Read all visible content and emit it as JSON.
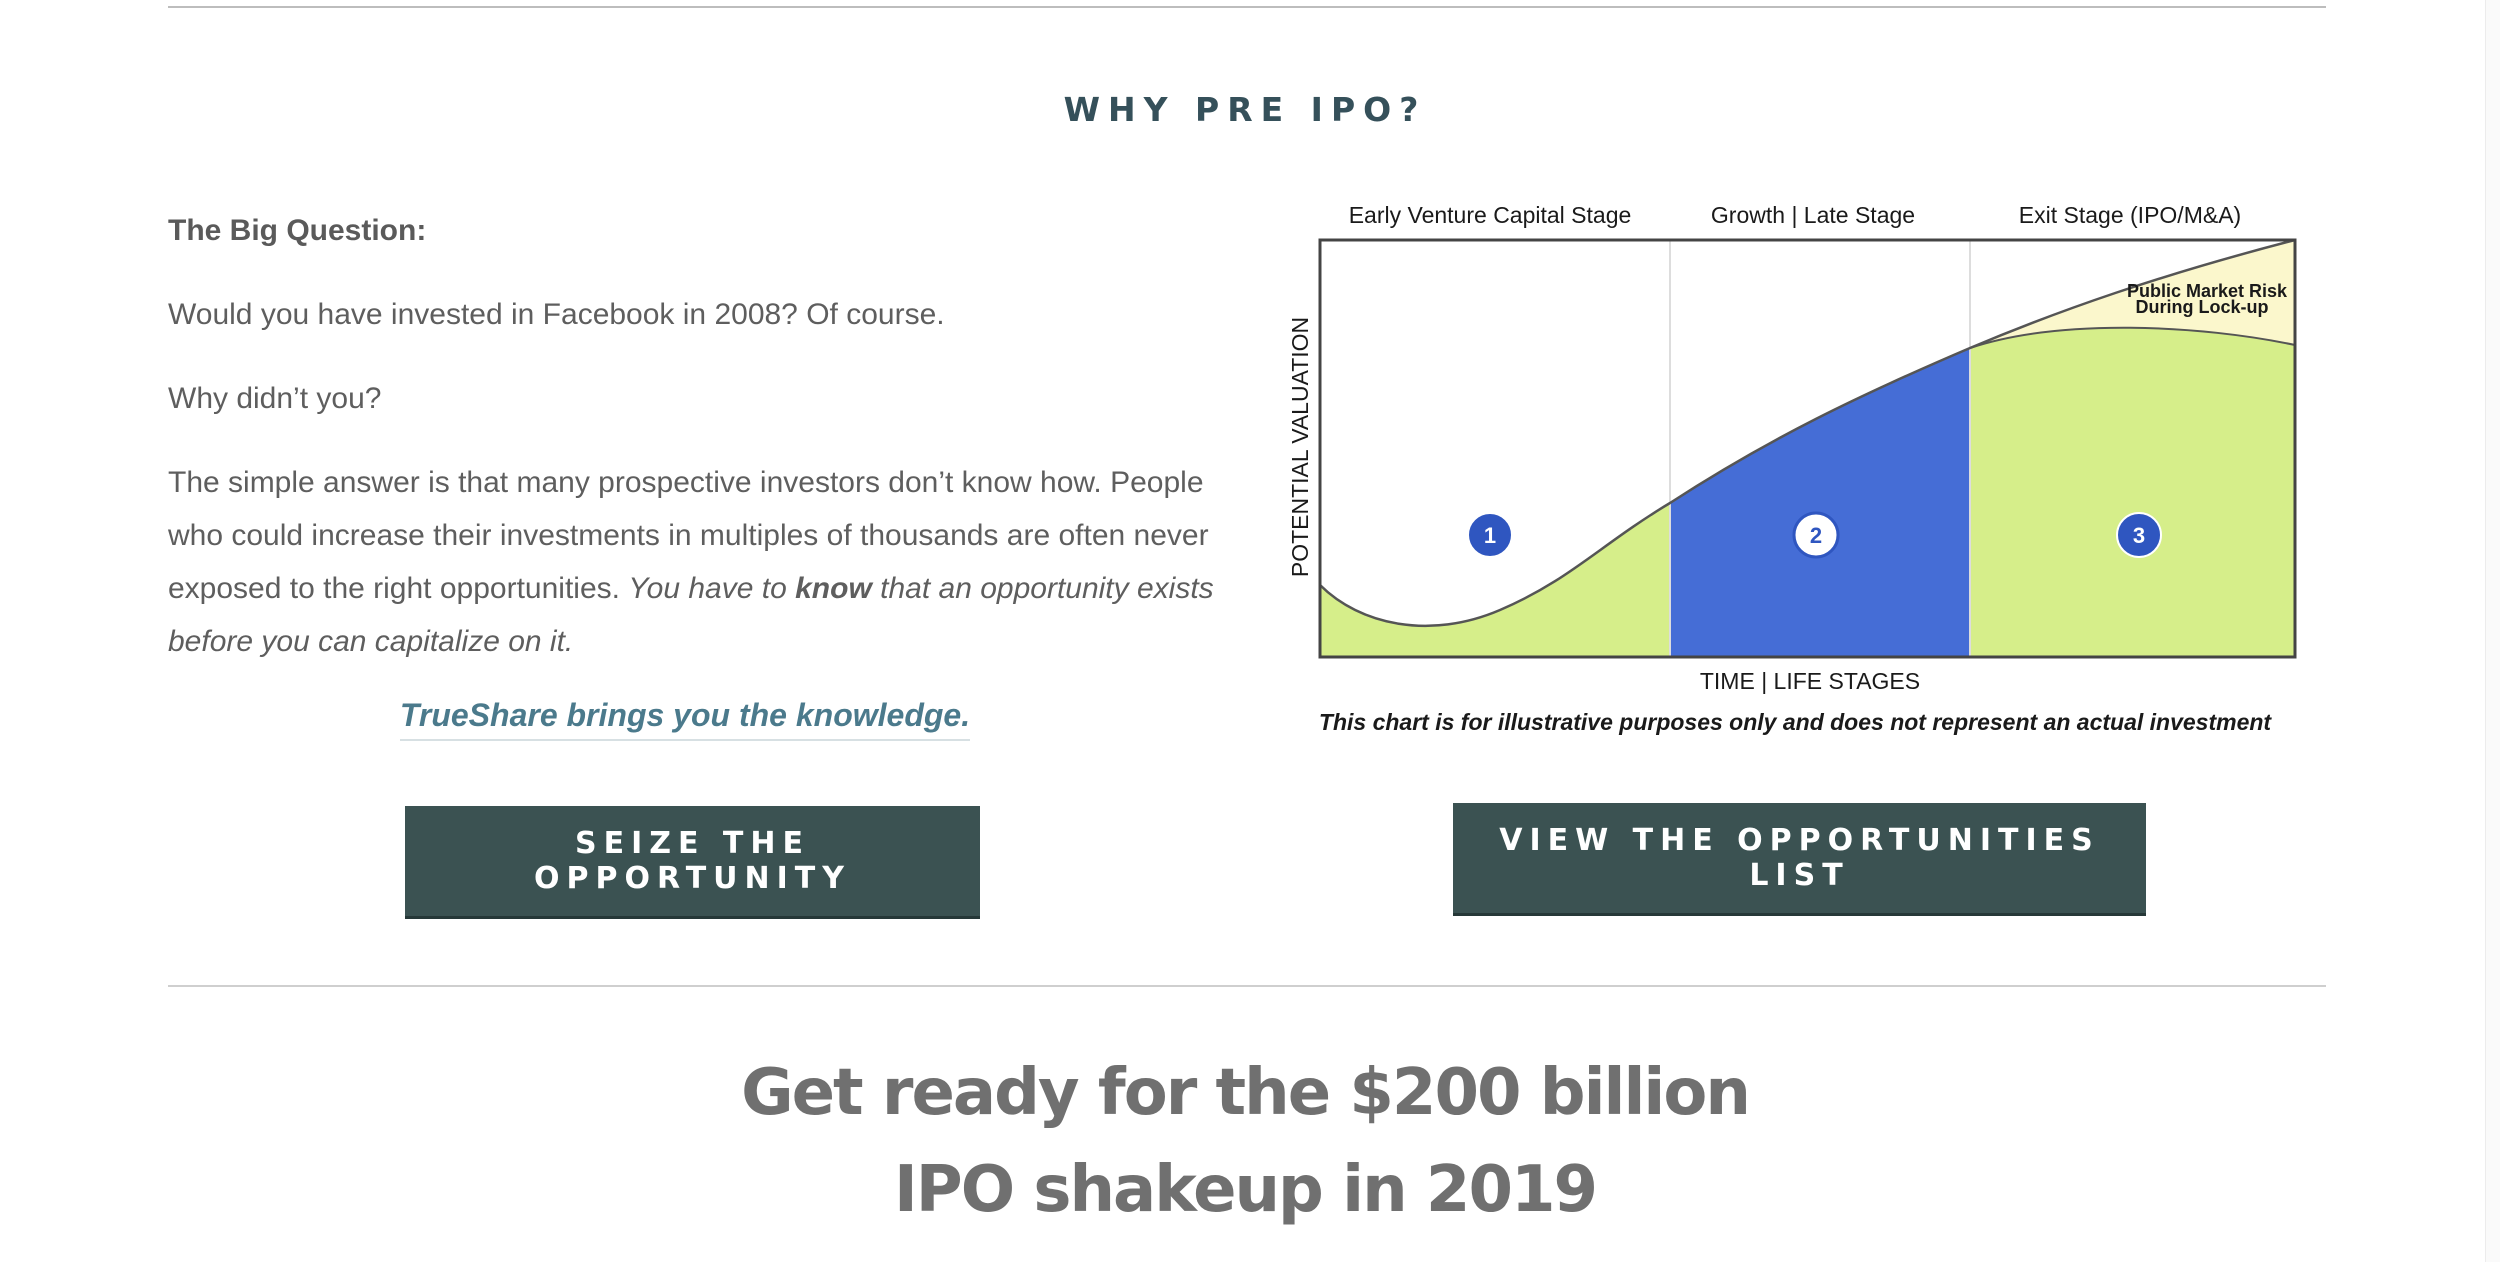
{
  "section": {
    "title": "WHY PRE IPO?"
  },
  "intro": {
    "heading": "The Big Question:",
    "line1": "Would you have invested in Facebook in 2008?  Of course.",
    "line2": "Why didn’t you?",
    "para_plain": "The simple answer is that many prospective investors don’t know how.  People who could increase their investments in multiples of thousands are often never exposed to the right opportunities.  ",
    "para_em_pre": "You have to ",
    "para_em_bold": "know",
    "para_em_post": " that an opportunity exists before you can capitalize on it.",
    "tagline": "TrueShare brings you the knowledge."
  },
  "buttons": {
    "seize_label": "SEIZE THE OPPORTUNITY",
    "view_label": "VIEW THE OPPORTUNITIES LIST"
  },
  "headline": {
    "line1": "Get ready for the $200 billion",
    "line2": "IPO shakeup in 2019"
  },
  "chart_data": {
    "type": "area",
    "stages": [
      "Early Venture Capital Stage",
      "Growth | Late Stage",
      "Exit Stage (IPO/M&A)"
    ],
    "stage_markers": [
      "1",
      "2",
      "3"
    ],
    "xlabel": "TIME | LIFE STAGES",
    "ylabel": "POTENTIAL VALUATION",
    "annotation_line1": "Public Market Risk",
    "annotation_line2": "During Lock-up",
    "note": "This chart is for illustrative purposes only and does not represent an actual investment",
    "colors": {
      "green": "#d6ee8a",
      "blue": "#456dd6",
      "yellow": "#fbf7cc",
      "marker": "#2f56c0",
      "frame": "#444444"
    }
  }
}
